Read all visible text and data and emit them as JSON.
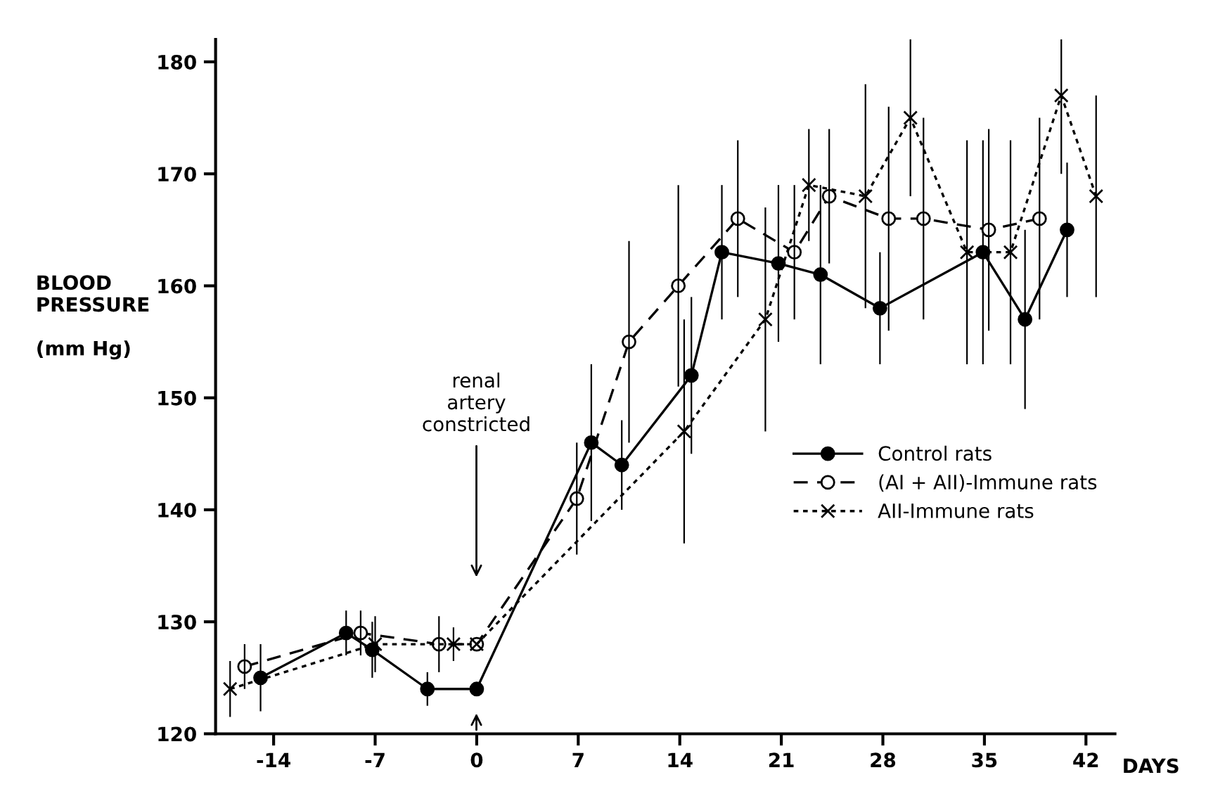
{
  "chart_data": {
    "type": "line",
    "xlabel": "DAYS",
    "ylabel": "BLOOD\nPRESSURE\n\n(mm Hg)",
    "xlim": [
      -18,
      44
    ],
    "ylim": [
      120,
      182
    ],
    "xticks": [
      -14,
      -7,
      0,
      7,
      14,
      21,
      28,
      35,
      42
    ],
    "yticks": [
      120,
      130,
      140,
      150,
      160,
      170,
      180
    ],
    "grid": false,
    "legend": "right",
    "annotations": [
      "renal\nartery\nconstricted"
    ],
    "series": [
      {
        "name": "Control rats",
        "color": "#000000",
        "marker": "circle",
        "line_style": "solid",
        "x": [
          -14.9,
          -9.0,
          -7.2,
          -3.4,
          0,
          7.9,
          10,
          14.8,
          16.9,
          20.8,
          23.7,
          27.8,
          34.9,
          37.8,
          40.7
        ],
        "values": [
          125,
          129,
          127.5,
          124,
          124,
          146,
          144,
          152,
          163,
          162,
          161,
          158,
          163,
          157,
          165
        ],
        "errors": [
          3,
          2,
          2.5,
          1.5,
          null,
          7,
          4,
          7,
          6,
          7,
          8,
          5,
          10,
          8,
          6
        ]
      },
      {
        "name": "(AI + AII)-Immune rats",
        "color": "#000000",
        "marker": "circle_open",
        "line_style": "dashed",
        "x": [
          -16.0,
          -8.0,
          -2.6,
          0,
          6.9,
          10.5,
          13.9,
          18,
          21.9,
          24.3,
          28.4,
          30.8,
          35.3,
          38.8
        ],
        "values": [
          126,
          129,
          128,
          128,
          141,
          155,
          160,
          166,
          163,
          168,
          166,
          166,
          165,
          166
        ],
        "errors": [
          2,
          2,
          2.5,
          null,
          5,
          9,
          9,
          7,
          6,
          6,
          10,
          9,
          9,
          9
        ]
      },
      {
        "name": "AII-Immune rats",
        "color": "#000000",
        "marker": "cross",
        "line_style": "dotted",
        "x": [
          -17.0,
          -7.0,
          -1.6,
          0,
          14.3,
          19.9,
          22.9,
          26.8,
          29.9,
          33.8,
          36.8,
          40.3,
          42.7
        ],
        "values": [
          124,
          128,
          128,
          128,
          147,
          157,
          169,
          168,
          175,
          163,
          163,
          177,
          168
        ],
        "errors": [
          2.5,
          2.5,
          1.5,
          null,
          10,
          10,
          5,
          10,
          7,
          10,
          10,
          7,
          9
        ]
      }
    ]
  }
}
